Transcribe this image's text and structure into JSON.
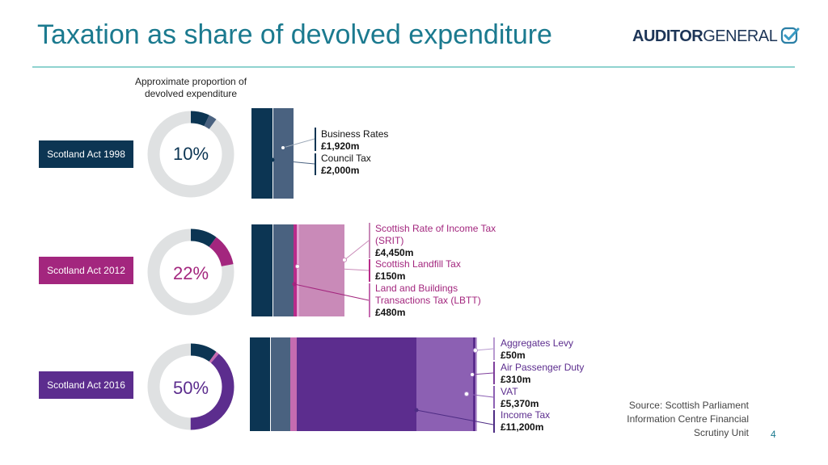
{
  "header": {
    "title": "Taxation as share of devolved expenditure",
    "logo_bold": "AUDITOR",
    "logo_light": "GENERAL"
  },
  "donut_caption": "Approximate proportion of devolved expenditure",
  "colors": {
    "title": "#1b7a8f",
    "rule": "#8fd3cf",
    "business_rates": "#0c3553",
    "council_tax": "#4a6280",
    "srit": "#c98ab8",
    "landfill": "#b92b8a",
    "lbtt": "#c56bb0",
    "aggregates": "#7e3f9c",
    "apd": "#5c2d8e",
    "vat": "#8c60b3",
    "income_tax": "#4e2c84",
    "act_1998": "#0c3553",
    "act_2012": "#a3267e",
    "act_2016": "#5c2d8e",
    "donut_track": "#dfe1e2"
  },
  "rows": [
    {
      "act": "Scotland Act 1998",
      "share_pct": 10,
      "share_label": "10%",
      "taxes": [
        {
          "name": "Business Rates",
          "value": "£1,920m",
          "amount_m": 1920
        },
        {
          "name": "Council Tax",
          "value": "£2,000m",
          "amount_m": 2000
        }
      ]
    },
    {
      "act": "Scotland Act 2012",
      "share_pct": 22,
      "share_label": "22%",
      "taxes": [
        {
          "name": "Scottish Rate of Income Tax (SRIT)",
          "value": "£4,450m",
          "amount_m": 4450
        },
        {
          "name": "Scottish Landfill Tax",
          "value": "£150m",
          "amount_m": 150
        },
        {
          "name": "Land and Buildings Transactions Tax (LBTT)",
          "value": "£480m",
          "amount_m": 480
        }
      ]
    },
    {
      "act": "Scotland Act 2016",
      "share_pct": 50,
      "share_label": "50%",
      "taxes": [
        {
          "name": "Aggregates Levy",
          "value": "£50m",
          "amount_m": 50
        },
        {
          "name": "Air Passenger Duty",
          "value": "£310m",
          "amount_m": 310
        },
        {
          "name": "VAT",
          "value": "£5,370m",
          "amount_m": 5370
        },
        {
          "name": "Income Tax",
          "value": "£11,200m",
          "amount_m": 11200
        }
      ]
    }
  ],
  "source": "Source: Scottish Parliament Information Centre Financial Scrutiny Unit",
  "page_number": "4"
}
